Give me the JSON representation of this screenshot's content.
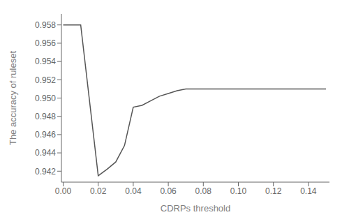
{
  "chart_data": {
    "type": "line",
    "xlabel": "CDRPs threshold",
    "ylabel": "The accuracy of ruleset",
    "x": [
      0.0,
      0.01,
      0.02,
      0.025,
      0.03,
      0.035,
      0.04,
      0.045,
      0.05,
      0.055,
      0.06,
      0.065,
      0.07,
      0.08,
      0.1,
      0.12,
      0.14,
      0.15
    ],
    "series": [
      {
        "name": null,
        "color": "#555555",
        "values": [
          0.958,
          0.958,
          0.9415,
          0.9422,
          0.943,
          0.9448,
          0.949,
          0.9492,
          0.9497,
          0.9502,
          0.9505,
          0.9508,
          0.951,
          0.951,
          0.951,
          0.951,
          0.951,
          0.951
        ]
      }
    ],
    "xlim": [
      -0.001,
      0.152
    ],
    "ylim": [
      0.9408,
      0.9592
    ],
    "xticks": [
      {
        "value": 0,
        "label": "0.00"
      },
      0.02,
      0.04,
      0.06,
      0.08,
      {
        "value": 0.1,
        "label": "0.10"
      },
      0.12,
      0.14
    ],
    "yticks": [
      0.942,
      0.944,
      0.946,
      0.948,
      {
        "value": 0.95,
        "label": "0.950"
      },
      0.952,
      0.954,
      0.956,
      0.958
    ],
    "grid": false
  }
}
